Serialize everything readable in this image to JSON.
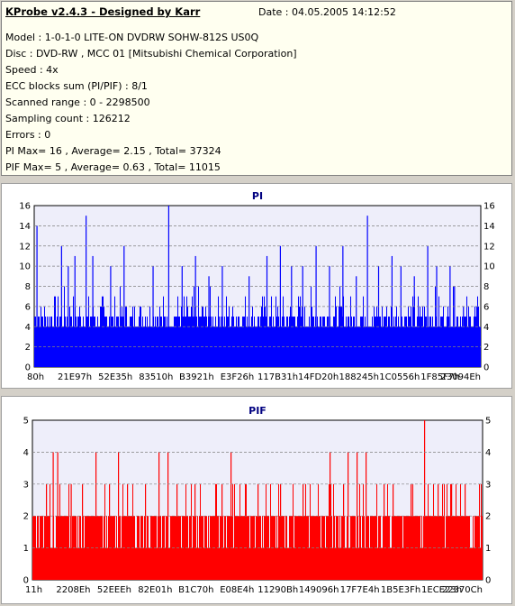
{
  "info": {
    "title": "KProbe v2.4.3 - Designed by Karr",
    "date": "Date : 04.05.2005 14:12:52",
    "lines": [
      "Model : 1-0-1-0 LITE-ON DVDRW SOHW-812S  US0Q",
      "Disc : DVD-RW , MCC 01 [Mitsubishi Chemical Corporation]",
      "Speed : 4x",
      "ECC blocks sum (PI/PIF) : 8/1",
      "Scanned range : 0 - 2298500",
      "Sampling count : 126212",
      "Errors : 0",
      "PI Max= 16 , Average= 2.15 , Total= 37324",
      "PIF Max= 5 , Average= 0.63 , Total= 11015"
    ]
  },
  "colors": {
    "pi_bar": "#0000ff",
    "pif_bar": "#ff0000",
    "plot_bg": "#eeeefa",
    "grid": "#808080"
  },
  "chart_data": [
    {
      "type": "bar",
      "title": "PI",
      "ylim": [
        0,
        16
      ],
      "yticks": [
        0,
        2,
        4,
        6,
        8,
        10,
        12,
        14,
        16
      ],
      "xticklabels": [
        "80h",
        "21E97h",
        "52E35h",
        "83510h",
        "B3921h",
        "E3F26h",
        "117B31h",
        "14FD20h",
        "188245h",
        "1C0556h",
        "1F85F7h",
        "23094Eh"
      ],
      "grid": true,
      "base": 5,
      "peaks": [
        {
          "pos": 0.005,
          "value": 14
        },
        {
          "pos": 0.06,
          "value": 12
        },
        {
          "pos": 0.075,
          "value": 10
        },
        {
          "pos": 0.09,
          "value": 11
        },
        {
          "pos": 0.115,
          "value": 15
        },
        {
          "pos": 0.13,
          "value": 11
        },
        {
          "pos": 0.17,
          "value": 10
        },
        {
          "pos": 0.2,
          "value": 12
        },
        {
          "pos": 0.265,
          "value": 10
        },
        {
          "pos": 0.3,
          "value": 16
        },
        {
          "pos": 0.33,
          "value": 10
        },
        {
          "pos": 0.36,
          "value": 11
        },
        {
          "pos": 0.39,
          "value": 9
        },
        {
          "pos": 0.42,
          "value": 10
        },
        {
          "pos": 0.48,
          "value": 9
        },
        {
          "pos": 0.52,
          "value": 11
        },
        {
          "pos": 0.55,
          "value": 12
        },
        {
          "pos": 0.575,
          "value": 10
        },
        {
          "pos": 0.6,
          "value": 10
        },
        {
          "pos": 0.63,
          "value": 12
        },
        {
          "pos": 0.66,
          "value": 10
        },
        {
          "pos": 0.69,
          "value": 12
        },
        {
          "pos": 0.72,
          "value": 9
        },
        {
          "pos": 0.745,
          "value": 15
        },
        {
          "pos": 0.77,
          "value": 10
        },
        {
          "pos": 0.8,
          "value": 11
        },
        {
          "pos": 0.82,
          "value": 10
        },
        {
          "pos": 0.85,
          "value": 9
        },
        {
          "pos": 0.88,
          "value": 12
        },
        {
          "pos": 0.9,
          "value": 10
        },
        {
          "pos": 0.93,
          "value": 10
        },
        {
          "pos": 0.94,
          "value": 8
        },
        {
          "pos": 0.96,
          "value": 6
        }
      ]
    },
    {
      "type": "bar",
      "title": "PIF",
      "ylim": [
        0,
        5
      ],
      "yticks": [
        0,
        1,
        2,
        3,
        4,
        5
      ],
      "xticklabels": [
        "11h",
        "2208Eh",
        "52EEEh",
        "82E01h",
        "B1C70h",
        "E08E4h",
        "11290Bh",
        "149096h",
        "17F7E4h",
        "1B5E3Fh",
        "1ECE23h",
        "22370Ch"
      ],
      "grid": true,
      "base": 2,
      "peaks": [
        {
          "pos": 0.03,
          "value": 3
        },
        {
          "pos": 0.045,
          "value": 4
        },
        {
          "pos": 0.055,
          "value": 4
        },
        {
          "pos": 0.085,
          "value": 3
        },
        {
          "pos": 0.11,
          "value": 3
        },
        {
          "pos": 0.14,
          "value": 4
        },
        {
          "pos": 0.17,
          "value": 3
        },
        {
          "pos": 0.19,
          "value": 4
        },
        {
          "pos": 0.21,
          "value": 3
        },
        {
          "pos": 0.25,
          "value": 3
        },
        {
          "pos": 0.28,
          "value": 4
        },
        {
          "pos": 0.3,
          "value": 4
        },
        {
          "pos": 0.32,
          "value": 3
        },
        {
          "pos": 0.36,
          "value": 3
        },
        {
          "pos": 0.42,
          "value": 3
        },
        {
          "pos": 0.44,
          "value": 4
        },
        {
          "pos": 0.5,
          "value": 3
        },
        {
          "pos": 0.55,
          "value": 3
        },
        {
          "pos": 0.6,
          "value": 3
        },
        {
          "pos": 0.66,
          "value": 4
        },
        {
          "pos": 0.69,
          "value": 3
        },
        {
          "pos": 0.7,
          "value": 4
        },
        {
          "pos": 0.72,
          "value": 4
        },
        {
          "pos": 0.74,
          "value": 4
        },
        {
          "pos": 0.78,
          "value": 3
        },
        {
          "pos": 0.8,
          "value": 3
        },
        {
          "pos": 0.84,
          "value": 3
        },
        {
          "pos": 0.87,
          "value": 5
        },
        {
          "pos": 0.9,
          "value": 3
        },
        {
          "pos": 0.93,
          "value": 3
        },
        {
          "pos": 0.96,
          "value": 3
        }
      ]
    }
  ]
}
